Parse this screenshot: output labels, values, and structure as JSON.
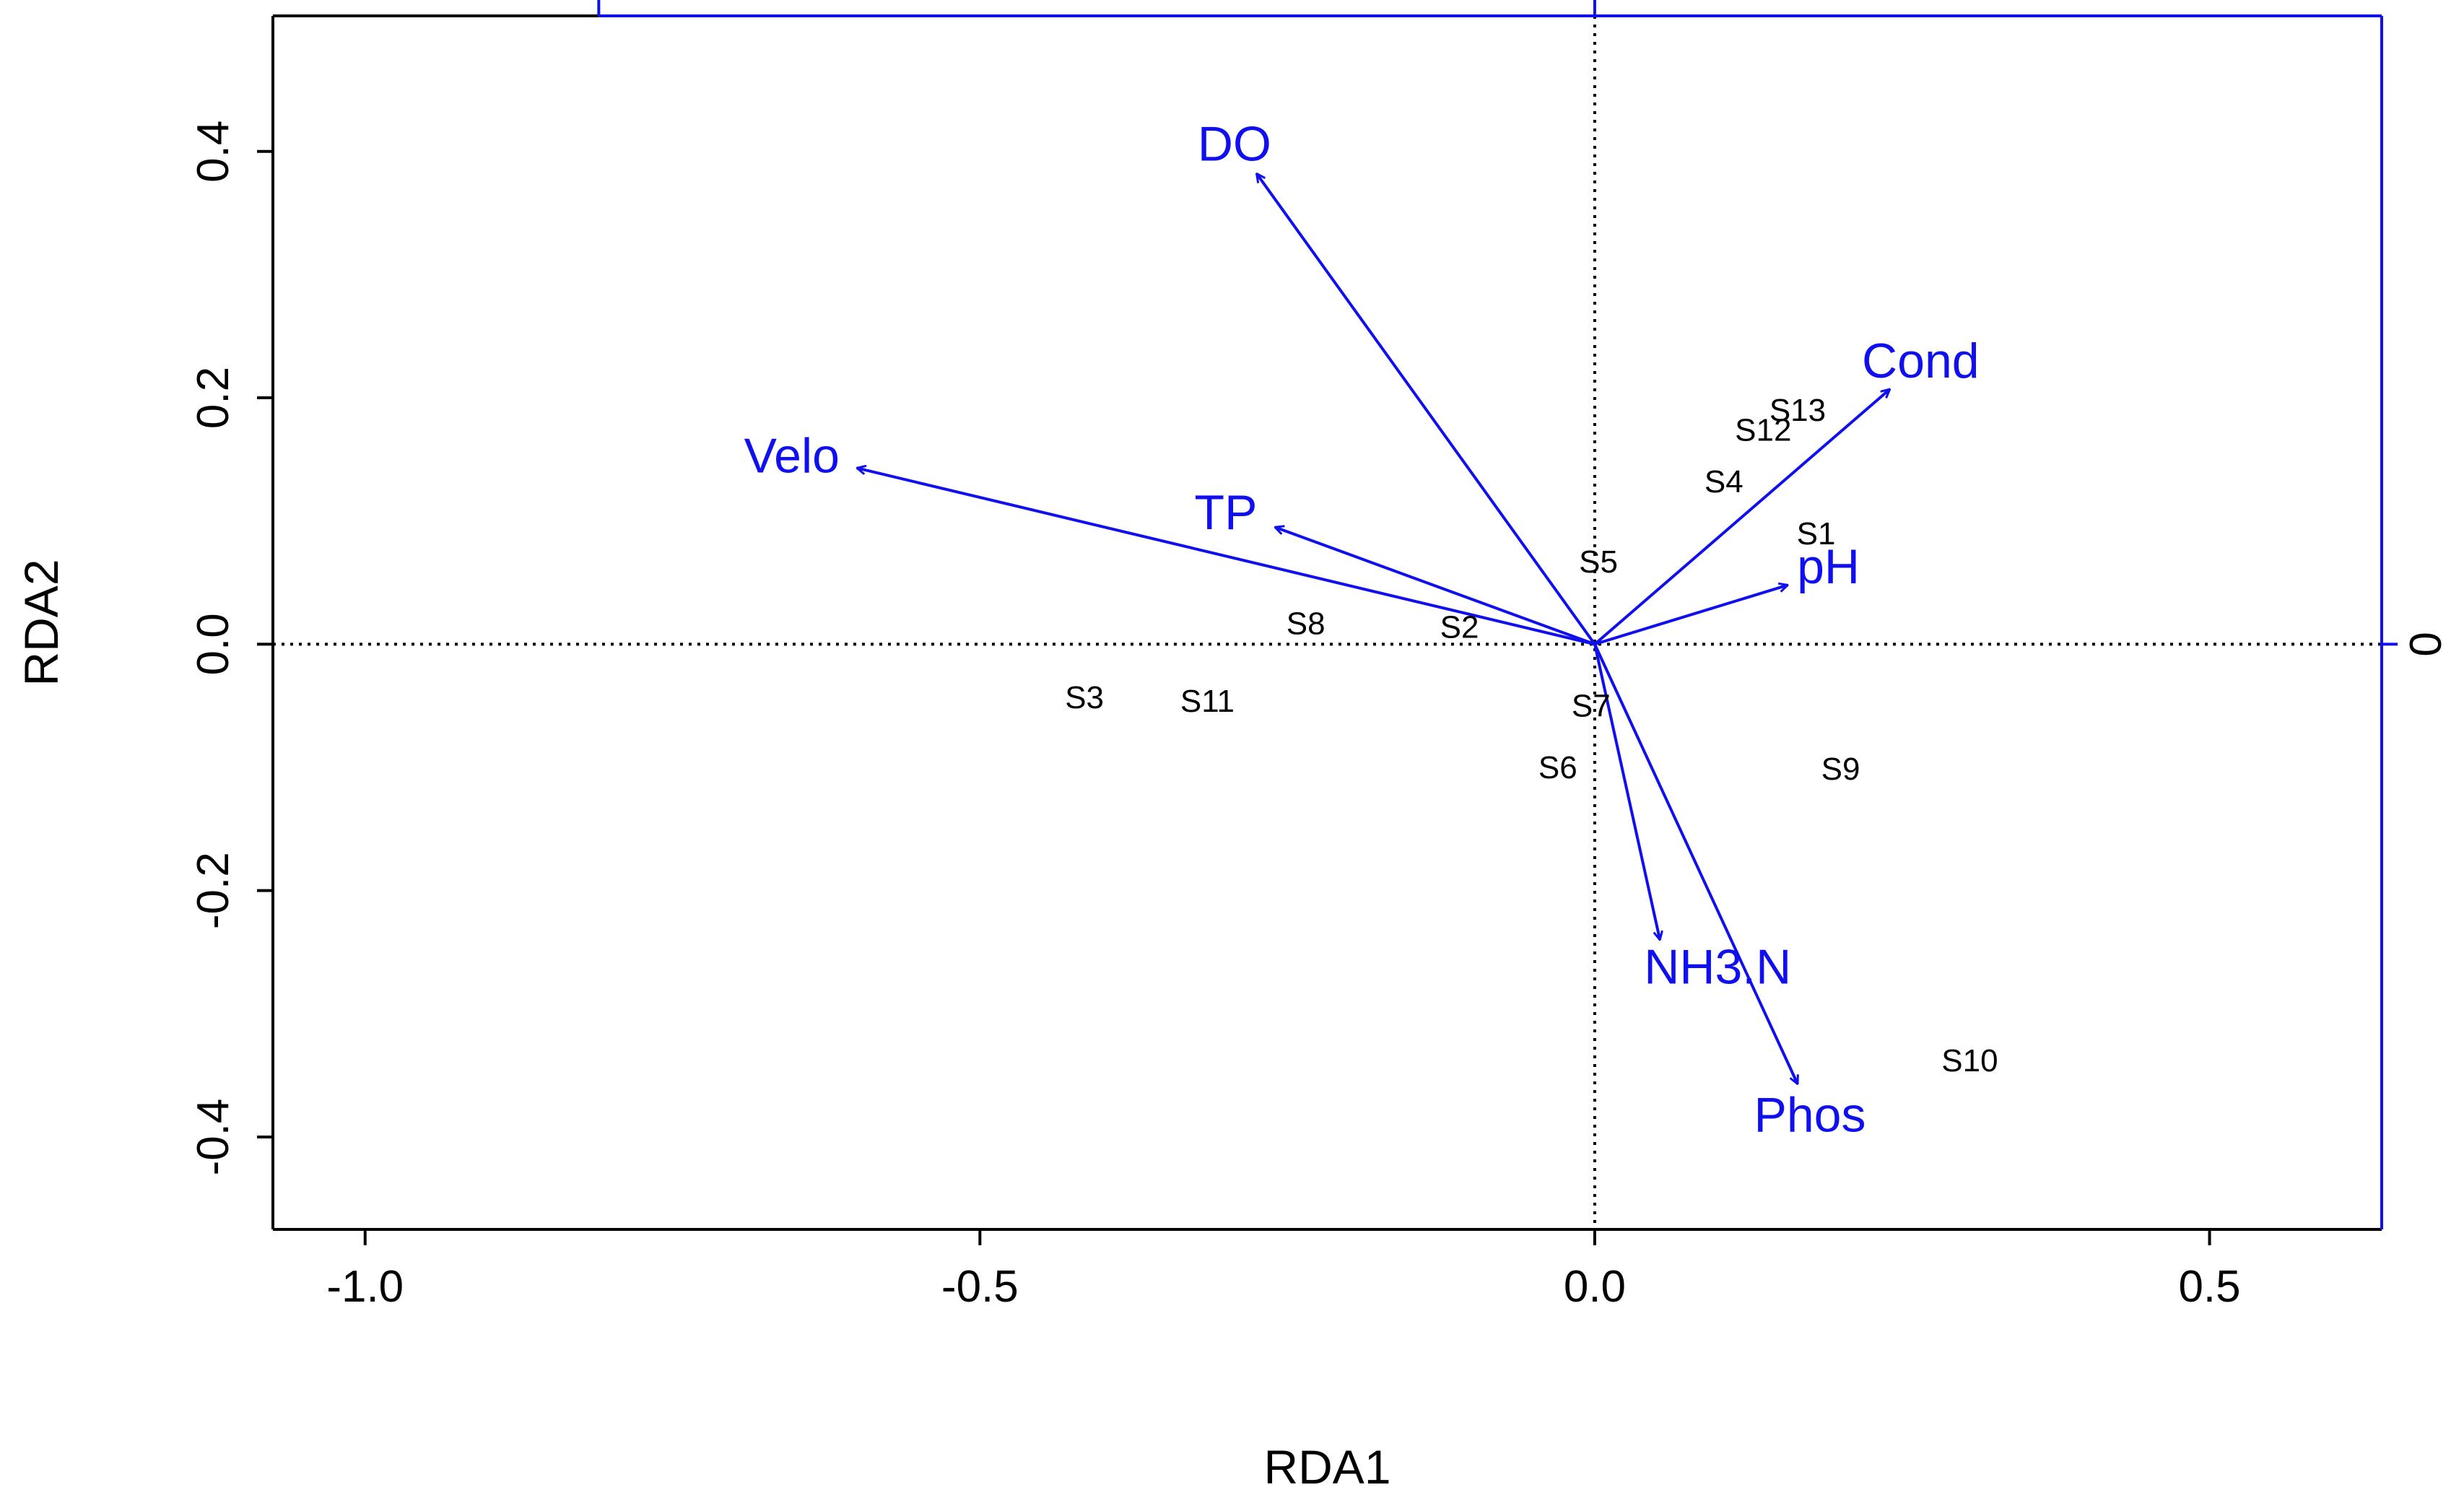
{
  "chart_data": {
    "type": "scatter",
    "subtype": "rda-biplot",
    "title": "",
    "xlabel": "RDA1",
    "ylabel": "RDA2",
    "xlim": [
      -1.075,
      0.64
    ],
    "ylim": [
      -0.475,
      0.51
    ],
    "x_ticks": [
      {
        "value": -1.0,
        "label": "-1.0"
      },
      {
        "value": -0.5,
        "label": "-0.5"
      },
      {
        "value": 0.0,
        "label": "0.0"
      },
      {
        "value": 0.5,
        "label": "0.5"
      }
    ],
    "y_ticks": [
      {
        "value": -0.4,
        "label": "-0.4"
      },
      {
        "value": -0.2,
        "label": "-0.2"
      },
      {
        "value": 0.0,
        "label": "0.0"
      },
      {
        "value": 0.2,
        "label": "0.2"
      },
      {
        "value": 0.4,
        "label": "0.4"
      }
    ],
    "right_axis_ticks": [
      {
        "value": 0.0,
        "label": "0"
      }
    ],
    "top_axis_ticks": [
      {
        "value": -0.81
      },
      {
        "value": 0.0
      }
    ],
    "reference_lines": {
      "x": 0,
      "y": 0,
      "style": "dotted"
    },
    "sites": [
      {
        "label": "S1",
        "x": 0.18,
        "y": 0.088
      },
      {
        "label": "S2",
        "x": -0.11,
        "y": 0.012
      },
      {
        "label": "S3",
        "x": -0.415,
        "y": -0.045
      },
      {
        "label": "S4",
        "x": 0.105,
        "y": 0.13
      },
      {
        "label": "S5",
        "x": 0.003,
        "y": 0.065
      },
      {
        "label": "S6",
        "x": -0.03,
        "y": -0.102
      },
      {
        "label": "S7",
        "x": -0.003,
        "y": -0.052
      },
      {
        "label": "S8",
        "x": -0.235,
        "y": 0.015
      },
      {
        "label": "S9",
        "x": 0.2,
        "y": -0.103
      },
      {
        "label": "S10",
        "x": 0.305,
        "y": -0.34
      },
      {
        "label": "S11",
        "x": -0.315,
        "y": -0.048
      },
      {
        "label": "S12",
        "x": 0.137,
        "y": 0.172
      },
      {
        "label": "S13",
        "x": 0.165,
        "y": 0.188
      }
    ],
    "environmental_vectors": [
      {
        "label": "DO",
        "x": -0.275,
        "y": 0.382
      },
      {
        "label": "Cond",
        "x": 0.24,
        "y": 0.207
      },
      {
        "label": "Velo",
        "x": -0.6,
        "y": 0.143
      },
      {
        "label": "TP",
        "x": -0.26,
        "y": 0.095
      },
      {
        "label": "pH",
        "x": 0.157,
        "y": 0.048
      },
      {
        "label": "NH3.N",
        "x": 0.053,
        "y": -0.24
      },
      {
        "label": "Phos",
        "x": 0.165,
        "y": -0.357
      }
    ],
    "vector_labels": [
      {
        "label": "DO",
        "x": -0.293,
        "y": 0.403
      },
      {
        "label": "Cond",
        "x": 0.265,
        "y": 0.227
      },
      {
        "label": "Velo",
        "x": -0.653,
        "y": 0.15
      },
      {
        "label": "TP",
        "x": -0.3,
        "y": 0.104
      },
      {
        "label": "pH",
        "x": 0.19,
        "y": 0.06
      },
      {
        "label": "NH3.N",
        "x": 0.1,
        "y": -0.265
      },
      {
        "label": "Phos",
        "x": 0.175,
        "y": -0.385
      }
    ],
    "colors": {
      "vectors": "#1010ee",
      "sites": "#000000",
      "axes": "#000000",
      "secondary_axes": "#1010ee"
    }
  }
}
